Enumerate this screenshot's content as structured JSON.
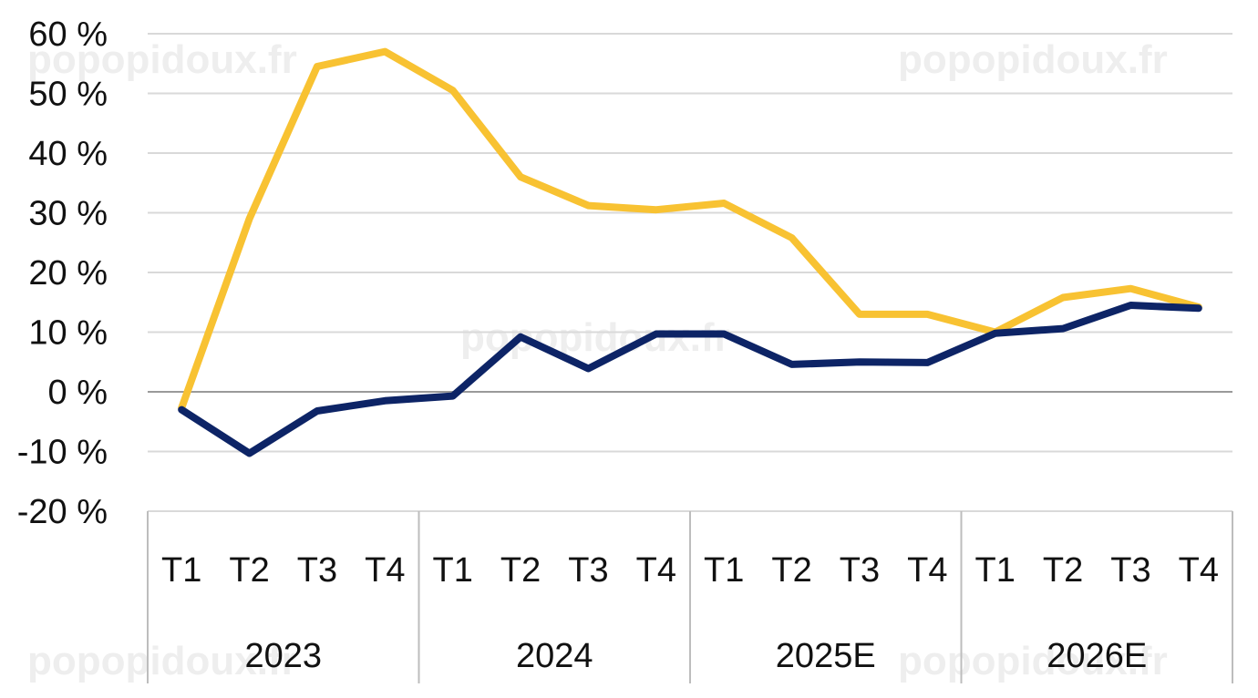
{
  "chart_data": {
    "type": "line",
    "y_ticks": [
      "60 %",
      "50 %",
      "40 %",
      "30 %",
      "20 %",
      "10 %",
      "0 %",
      "-10 %",
      "-20 %"
    ],
    "ylim": [
      -20,
      60
    ],
    "grid": true,
    "legend": "none",
    "categories": [
      "T1",
      "T2",
      "T3",
      "T4",
      "T1",
      "T2",
      "T3",
      "T4",
      "T1",
      "T2",
      "T3",
      "T4",
      "T1",
      "T2",
      "T3",
      "T4"
    ],
    "groups": [
      {
        "label": "2023",
        "count": 4
      },
      {
        "label": "2024",
        "count": 4
      },
      {
        "label": "2025E",
        "count": 4
      },
      {
        "label": "2026E",
        "count": 4
      }
    ],
    "series": [
      {
        "color": "#F8C232",
        "values": [
          -2.7,
          29,
          54.5,
          57,
          50.5,
          36,
          31.2,
          30.5,
          31.6,
          25.8,
          13,
          13,
          10,
          15.8,
          17.3,
          14.2
        ]
      },
      {
        "color": "#0D2466",
        "values": [
          -3,
          -10.3,
          -3.2,
          -1.5,
          -0.7,
          9.2,
          3.9,
          9.7,
          9.7,
          4.6,
          5,
          4.9,
          9.8,
          10.6,
          14.5,
          14
        ]
      }
    ]
  },
  "watermarks": [
    "popopidoux.fr",
    "popopidoux.fr",
    "popopidoux.fr",
    "popopidoux.fr",
    "popopidoux.fr"
  ]
}
